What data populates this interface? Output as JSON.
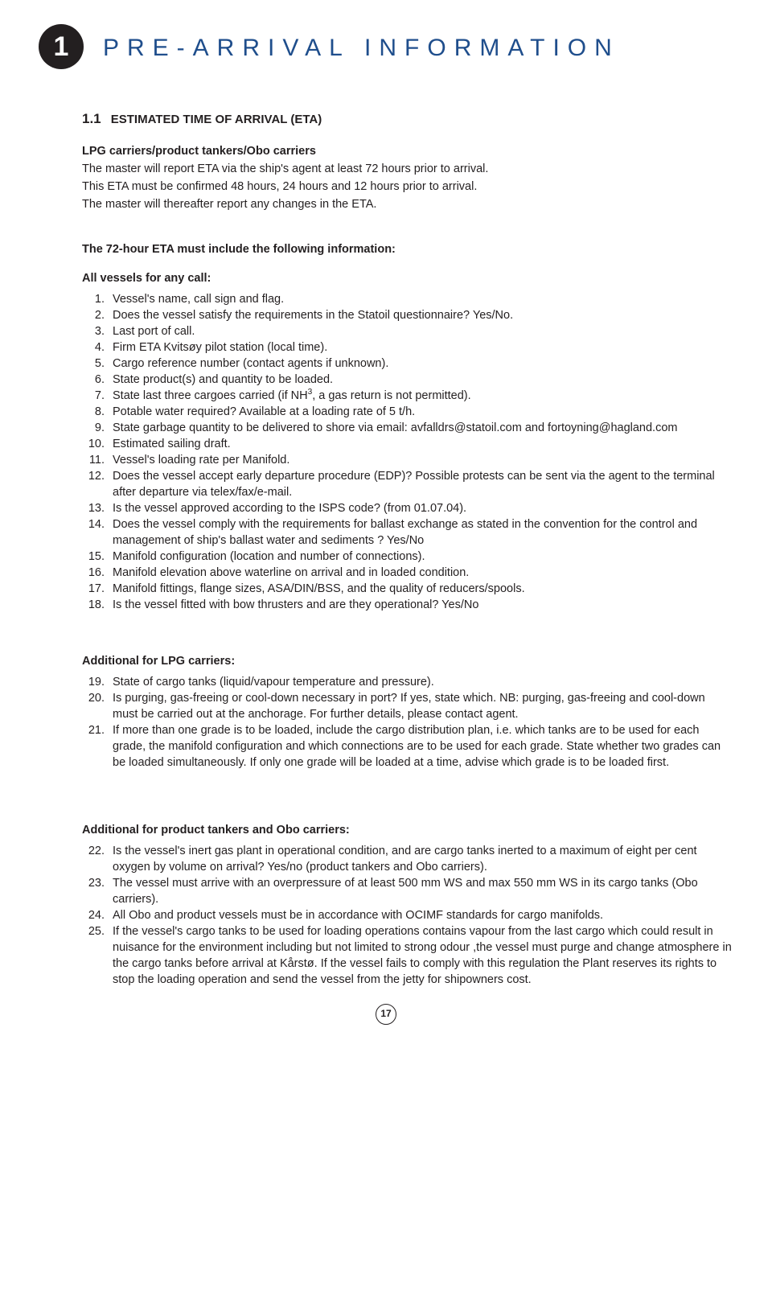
{
  "chapter": {
    "number": "1",
    "title": "PRE-ARRIVAL INFORMATION"
  },
  "section": {
    "number": "1.1",
    "title": "ESTIMATED TIME OF ARRIVAL (ETA)"
  },
  "intro": {
    "subhead": "LPG carriers/product tankers/Obo carriers",
    "p1": "The master will report ETA via the ship's agent at least 72 hours prior to arrival.",
    "p2": "This ETA must be confirmed 48 hours, 24 hours and 12 hours prior to arrival.",
    "p3": "The master will thereafter report any changes in the ETA."
  },
  "main_list": {
    "lead": "The 72-hour ETA must include the following information:",
    "subhead": "All vessels for any call:",
    "items": [
      {
        "n": "1.",
        "t": "Vessel's name, call sign and flag."
      },
      {
        "n": "2.",
        "t": "Does the vessel satisfy the requirements in the Statoil questionnaire? Yes/No."
      },
      {
        "n": "3.",
        "t": "Last port of call."
      },
      {
        "n": "4.",
        "t": "Firm ETA Kvitsøy pilot station (local time)."
      },
      {
        "n": "5.",
        "t": "Cargo reference number (contact agents if unknown)."
      },
      {
        "n": "6.",
        "t": "State product(s) and quantity to be loaded."
      },
      {
        "n": "7.",
        "t": "State last three cargoes carried (if NH³, a gas return is not permitted)."
      },
      {
        "n": "8.",
        "t": "Potable water required? Available at a loading rate of 5 t/h."
      },
      {
        "n": "9.",
        "t": "State garbage quantity to be delivered to shore via email: avfalldrs@statoil.com and fortoyning@hagland.com"
      },
      {
        "n": "10.",
        "t": "Estimated sailing draft."
      },
      {
        "n": "11.",
        "t": "Vessel's loading rate per Manifold."
      },
      {
        "n": "12.",
        "t": "Does the vessel accept early departure procedure (EDP)? Possible protests can be sent via the agent to the terminal after departure via telex/fax/e-mail."
      },
      {
        "n": "13.",
        "t": "Is the vessel approved according to the ISPS code? (from 01.07.04)."
      },
      {
        "n": "14.",
        "t": "Does the vessel comply with the requirements for ballast exchange as stated in the convention for the control and management of ship's ballast water and sediments ? Yes/No"
      },
      {
        "n": "15.",
        "t": "Manifold configuration (location and number of connections)."
      },
      {
        "n": "16.",
        "t": "Manifold elevation above waterline on arrival and in loaded condition."
      },
      {
        "n": "17.",
        "t": "Manifold fittings, flange sizes, ASA/DIN/BSS, and the quality of reducers/spools."
      },
      {
        "n": "18.",
        "t": "Is the vessel fitted with bow thrusters and are they operational? Yes/No"
      }
    ]
  },
  "lpg": {
    "heading": "Additional for LPG carriers:",
    "items": [
      {
        "n": "19.",
        "t": "State of cargo tanks (liquid/vapour temperature and pressure)."
      },
      {
        "n": "20.",
        "t": "Is purging, gas-freeing or cool-down necessary in port? If yes, state which. NB: purging, gas-freeing and cool-down must be carried out at the anchorage. For further details, please contact agent."
      },
      {
        "n": "21.",
        "t": " If more than one grade is to be loaded, include the cargo distribution plan, i.e. which tanks are to be used for each grade, the manifold configuration and which connections are to be used for each grade. State whether two grades can be loaded simultaneously. If only one grade will be loaded at a time, advise which grade is to be loaded first."
      }
    ]
  },
  "obo": {
    "heading": "Additional for product tankers and Obo carriers:",
    "items": [
      {
        "n": "22.",
        "t": "Is the vessel's inert gas plant in operational condition, and are cargo tanks inerted to a maximum of eight per cent oxygen by volume on arrival? Yes/no (product tankers and Obo carriers)."
      },
      {
        "n": "23.",
        "t": "The vessel must arrive with an overpressure of at least 500 mm WS and max 550 mm WS in its cargo tanks (Obo carriers)."
      },
      {
        "n": "24.",
        "t": "All Obo and product vessels must be in accordance with OCIMF standards for cargo manifolds."
      },
      {
        "n": "25.",
        "t": "If the vessel's cargo tanks to be used for loading operations contains vapour from the last cargo which could result in nuisance for the environment including but not limited to strong odour ,the vessel must purge and change atmosphere in the cargo tanks before arrival at Kårstø.  If the vessel fails to comply with this regulation the Plant reserves its rights to stop the loading operation and send the vessel from the jetty for shipowners cost."
      }
    ]
  },
  "page_number": "17"
}
